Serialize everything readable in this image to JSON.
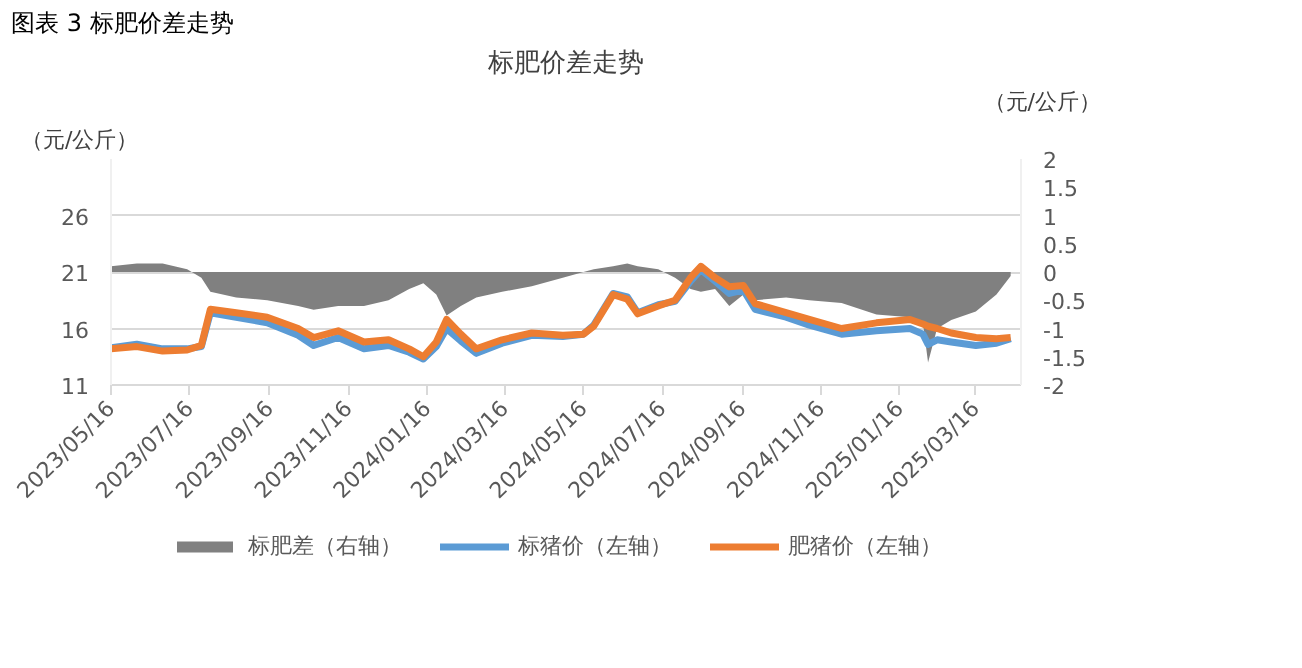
{
  "chart_data": {
    "type": "line",
    "title": "标肥价差走势",
    "ylabel": "（元/公斤）",
    "y2label": "（元/公斤）",
    "annotations": [
      "图表 3 标肥价差走势"
    ],
    "x": [
      "2023-05-16",
      "2023-06-05",
      "2023-06-25",
      "2023-07-14",
      "2023-07-25",
      "2023-08-01",
      "2023-08-21",
      "2023-09-14",
      "2023-10-08",
      "2023-10-20",
      "2023-11-08",
      "2023-11-28",
      "2023-12-17",
      "2024-01-02",
      "2024-01-13",
      "2024-01-23",
      "2024-01-31",
      "2024-02-11",
      "2024-02-23",
      "2024-03-14",
      "2024-04-06",
      "2024-04-30",
      "2024-05-16",
      "2024-05-24",
      "2024-06-08",
      "2024-06-19",
      "2024-06-27",
      "2024-07-13",
      "2024-07-26",
      "2024-08-07",
      "2024-08-15",
      "2024-08-26",
      "2024-09-06",
      "2024-09-17",
      "2024-09-26",
      "2024-10-20",
      "2024-11-07",
      "2024-12-02",
      "2024-12-29",
      "2025-01-24",
      "2025-02-03",
      "2025-02-07",
      "2025-02-14",
      "2025-02-25",
      "2025-03-16",
      "2025-04-01",
      "2025-04-12"
    ],
    "series": [
      {
        "name": "标肥差（右轴）",
        "type": "area",
        "axis": "y2",
        "color": "#808080",
        "values": [
          0.1,
          0.15,
          0.15,
          0.05,
          -0.1,
          -0.35,
          -0.45,
          -0.5,
          -0.6,
          -0.67,
          -0.6,
          -0.6,
          -0.5,
          -0.3,
          -0.2,
          -0.4,
          -0.77,
          -0.6,
          -0.45,
          -0.35,
          -0.25,
          -0.1,
          0.0,
          0.05,
          0.1,
          0.15,
          0.1,
          0.05,
          -0.1,
          -0.3,
          -0.35,
          -0.3,
          -0.6,
          -0.4,
          -0.5,
          -0.45,
          -0.5,
          -0.55,
          -0.75,
          -0.8,
          -0.9,
          -1.6,
          -1.0,
          -0.85,
          -0.7,
          -0.4,
          -0.07
        ]
      },
      {
        "name": "标猪价（左轴）",
        "color": "#5b9bd5",
        "values": [
          14.3,
          14.6,
          14.2,
          14.2,
          14.4,
          17.4,
          17.0,
          16.5,
          15.4,
          14.5,
          15.2,
          14.2,
          14.5,
          13.9,
          13.3,
          14.4,
          16.0,
          14.9,
          13.8,
          14.7,
          15.4,
          15.3,
          15.5,
          16.3,
          19.1,
          18.8,
          17.4,
          18.1,
          18.4,
          20.2,
          21.2,
          20.2,
          19.1,
          19.4,
          17.7,
          17.0,
          16.3,
          15.5,
          15.8,
          16.0,
          15.5,
          14.6,
          15.0,
          14.8,
          14.5,
          14.7,
          15.1
        ]
      },
      {
        "name": "肥猪价（左轴）",
        "color": "#ed7d31",
        "values": [
          14.2,
          14.4,
          14.0,
          14.1,
          14.5,
          17.7,
          17.4,
          17.0,
          16.0,
          15.2,
          15.8,
          14.8,
          15.0,
          14.2,
          13.5,
          14.8,
          16.8,
          15.5,
          14.2,
          15.0,
          15.6,
          15.4,
          15.5,
          16.2,
          19.0,
          18.6,
          17.3,
          18.0,
          18.5,
          20.5,
          21.5,
          20.5,
          19.7,
          19.8,
          18.2,
          17.4,
          16.8,
          16.0,
          16.5,
          16.8,
          16.4,
          16.2,
          16.0,
          15.6,
          15.2,
          15.1,
          15.2
        ]
      }
    ],
    "xlim": [
      "2023-05-16",
      "2025-04-20"
    ],
    "xticks": [
      {
        "value": "2023-05-16",
        "label": "2023/05/16"
      },
      {
        "value": "2023-07-16",
        "label": "2023/07/16"
      },
      {
        "value": "2023-09-16",
        "label": "2023/09/16"
      },
      {
        "value": "2023-11-16",
        "label": "2023/11/16"
      },
      {
        "value": "2024-01-16",
        "label": "2024/01/16"
      },
      {
        "value": "2024-03-16",
        "label": "2024/03/16"
      },
      {
        "value": "2024-05-16",
        "label": "2024/05/16"
      },
      {
        "value": "2024-07-16",
        "label": "2024/07/16"
      },
      {
        "value": "2024-09-16",
        "label": "2024/09/16"
      },
      {
        "value": "2024-11-16",
        "label": "2024/11/16"
      },
      {
        "value": "2025-01-16",
        "label": "2025/01/16"
      },
      {
        "value": "2025-03-16",
        "label": "2025/03/16"
      }
    ],
    "ylim": [
      11,
      31
    ],
    "yticks": [
      11,
      16,
      21,
      26
    ],
    "y2lim": [
      -2,
      2
    ],
    "y2ticks": [
      -2,
      -1.5,
      -1,
      -0.5,
      0,
      0.5,
      1,
      1.5,
      2
    ],
    "grid": "y",
    "legend": "bottom"
  }
}
